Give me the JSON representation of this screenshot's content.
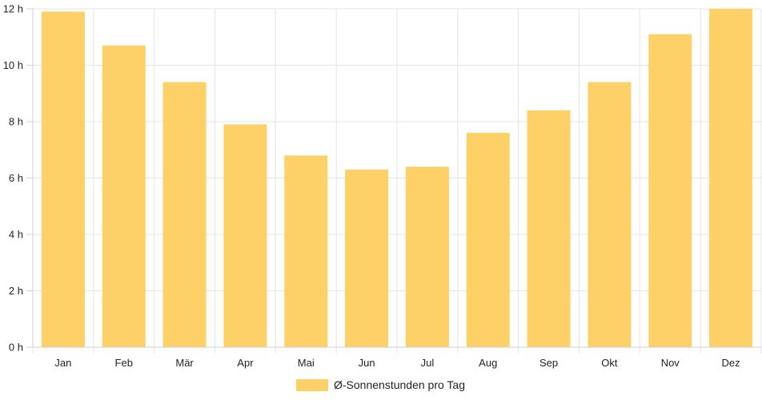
{
  "chart_data": {
    "type": "bar",
    "categories": [
      "Jan",
      "Feb",
      "Mär",
      "Apr",
      "Mai",
      "Jun",
      "Jul",
      "Aug",
      "Sep",
      "Okt",
      "Nov",
      "Dez"
    ],
    "series": [
      {
        "name": "Ø-Sonnenstunden pro Tag",
        "values": [
          11.9,
          10.7,
          9.4,
          7.9,
          6.8,
          6.3,
          6.4,
          7.6,
          8.4,
          9.4,
          11.1,
          12.0
        ],
        "color": "#fdd167"
      }
    ],
    "yticks": [
      "0 h",
      "2 h",
      "4 h",
      "6 h",
      "8 h",
      "10 h",
      "12 h"
    ],
    "ylim": [
      0,
      12
    ],
    "grid": true,
    "legend_position": "bottom"
  }
}
